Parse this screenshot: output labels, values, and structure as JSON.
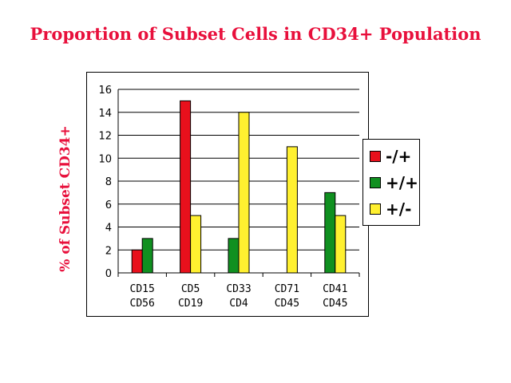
{
  "colors": {
    "title": "#e8103c",
    "neg_pos": "#e8101c",
    "pos_pos": "#109020",
    "pos_neg": "#fff030"
  },
  "chart_data": {
    "type": "bar",
    "title": "Proportion of Subset Cells in CD34+ Population",
    "ylabel": "% of Subset CD34+",
    "ylim": [
      0,
      16
    ],
    "yticks": [
      0,
      2,
      4,
      6,
      8,
      10,
      12,
      14,
      16
    ],
    "grid": true,
    "legend_position": "right",
    "categories": [
      [
        "CD15",
        "CD56"
      ],
      [
        "CD5",
        "CD19"
      ],
      [
        "CD33",
        "CD4"
      ],
      [
        "CD71",
        "CD45"
      ],
      [
        "CD41",
        "CD45"
      ]
    ],
    "series": [
      {
        "name": "-/+",
        "color": "#e8101c",
        "values": [
          2,
          15,
          0,
          0,
          0
        ]
      },
      {
        "name": "+/+",
        "color": "#109020",
        "values": [
          3,
          0,
          3,
          0,
          7
        ]
      },
      {
        "name": "+/-",
        "color": "#fff030",
        "values": [
          0,
          5,
          14,
          11,
          5
        ]
      }
    ]
  }
}
